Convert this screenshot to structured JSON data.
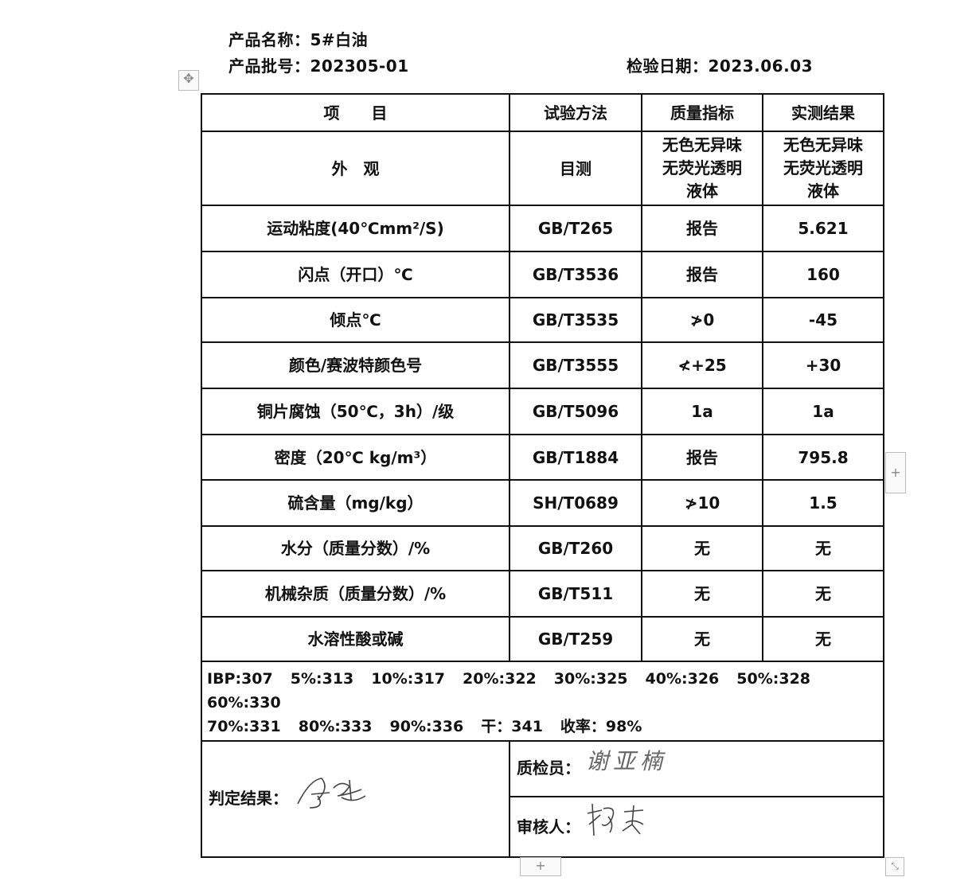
{
  "header": {
    "product_name": "产品名称：5#白油",
    "batch_no": "产品批号：202305-01",
    "inspection_date": "检验日期：2023.06.03"
  },
  "table": {
    "columns": [
      "项　　目",
      "试验方法",
      "质量指标",
      "实测结果"
    ],
    "rows": [
      {
        "item": "外　观",
        "method": "目测",
        "spec": "无色无异味 无荧光透明 液体",
        "result": "无色无异味 无荧光透明 液体"
      },
      {
        "item": "运动粘度(40℃mm²/S)",
        "method": "GB/T265",
        "spec": "报告",
        "result": "5.621"
      },
      {
        "item": "闪点（开口）℃",
        "method": "GB/T3536",
        "spec": "报告",
        "result": "160"
      },
      {
        "item": "倾点℃",
        "method": "GB/T3535",
        "spec": "≯0",
        "result": "-45"
      },
      {
        "item": "颜色/赛波特颜色号",
        "method": "GB/T3555",
        "spec": "≮+25",
        "result": "+30"
      },
      {
        "item": "铜片腐蚀（50℃，3h）/级",
        "method": "GB/T5096",
        "spec": "1a",
        "result": "1a"
      },
      {
        "item": "密度（20℃ kg/m³）",
        "method": "GB/T1884",
        "spec": "报告",
        "result": "795.8"
      },
      {
        "item": "硫含量（mg/kg）",
        "method": "SH/T0689",
        "spec": "≯10",
        "result": "1.5"
      },
      {
        "item": "水分（质量分数）/%",
        "method": "GB/T260",
        "spec": "无",
        "result": "无"
      },
      {
        "item": "机械杂质（质量分数）/%",
        "method": "GB/T511",
        "spec": "无",
        "result": "无"
      },
      {
        "item": "水溶性酸或碱",
        "method": "GB/T259",
        "spec": "无",
        "result": "无"
      }
    ],
    "distillation": [
      "IBP:307",
      "5%:313",
      "10%:317",
      "20%:322",
      "30%:325",
      "40%:326",
      "50%:328",
      "60%:330",
      "70%:331",
      "80%:333",
      "90%:336",
      "干：341",
      "收率：98%"
    ]
  },
  "footer": {
    "judgement_label": "判定结果：",
    "judgement_signature": "合格",
    "inspector_label": "质检员：",
    "inspector_signature": "谢亚楠",
    "reviewer_label": "审核人：",
    "reviewer_signature": "杨森"
  },
  "widgets": {
    "move_icon": "move-icon",
    "add_icon": "plus-icon",
    "resize_icon": "resize-icon"
  }
}
